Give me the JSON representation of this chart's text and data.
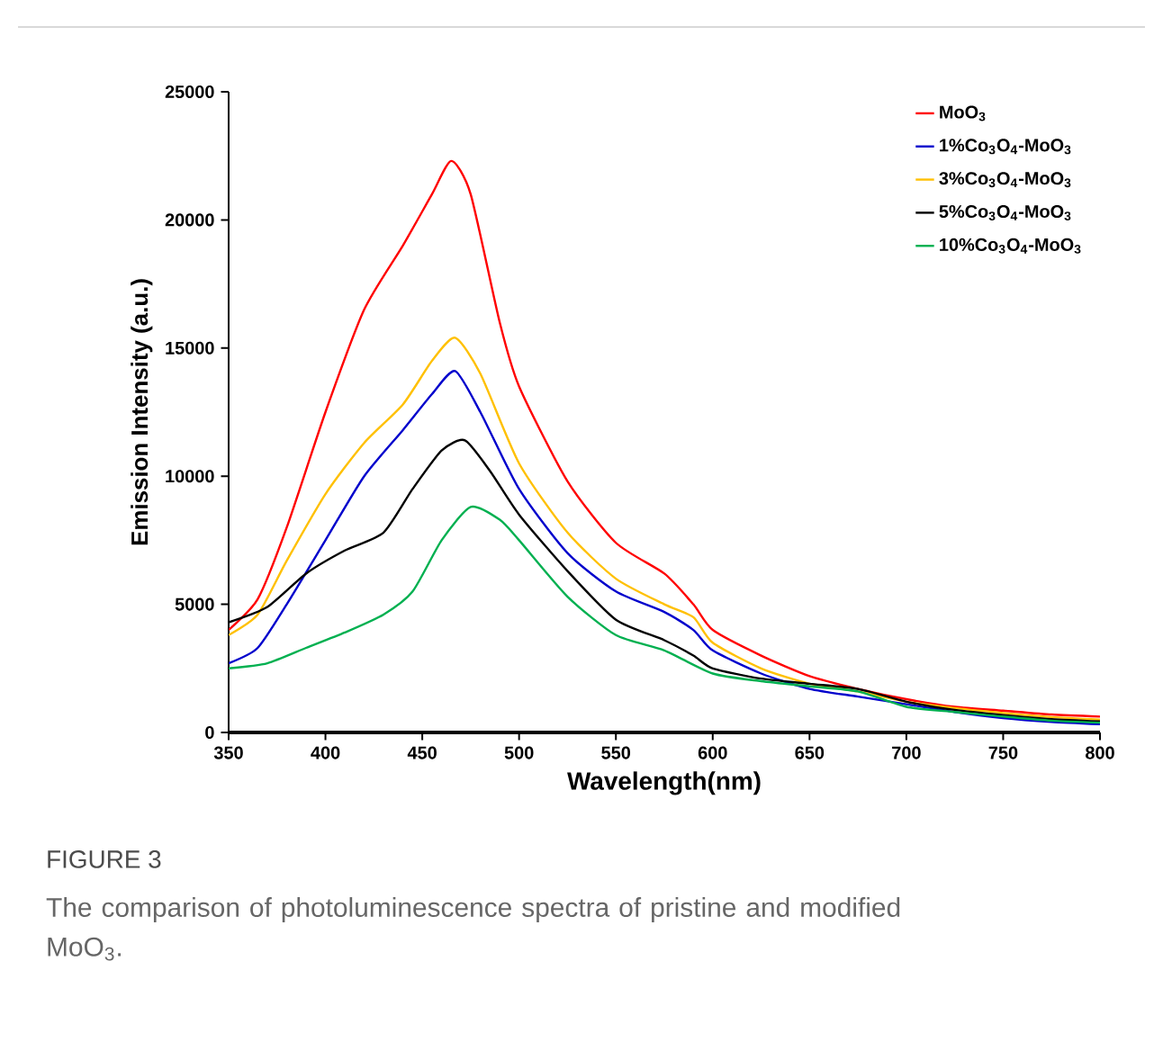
{
  "chart_data": {
    "type": "line",
    "xlabel": "Wavelength(nm)",
    "ylabel": "Emission Intensity (a.u.)",
    "xlim": [
      350,
      800
    ],
    "xticks": [
      350,
      400,
      450,
      500,
      550,
      600,
      650,
      700,
      750,
      800
    ],
    "ylim": [
      0,
      25000
    ],
    "yticks": [
      0,
      5000,
      10000,
      15000,
      20000,
      25000
    ],
    "legend": "top right",
    "grid": false,
    "marker": "none",
    "line_style": "solid",
    "annotations": [
      "FIGURE 3",
      "The comparison of photoluminescence spectra of pristine and modified MoO$_{3}$."
    ],
    "series": [
      {
        "name": "MoO$_{3}$",
        "color": "#ff0000",
        "x": [
          350,
          365,
          380,
          400,
          420,
          440,
          455,
          465,
          475,
          490,
          500,
          525,
          550,
          575,
          590,
          600,
          625,
          650,
          675,
          700,
          725,
          750,
          775,
          800
        ],
        "values": [
          4000,
          5200,
          8000,
          12500,
          16500,
          19000,
          21000,
          22300,
          21000,
          16000,
          13500,
          9800,
          7400,
          6200,
          5000,
          4000,
          3000,
          2200,
          1700,
          1300,
          1000,
          850,
          700,
          620
        ]
      },
      {
        "name": "1%Co$_{3}$O$_{4}$-MoO$_{3}$",
        "color": "#0000cc",
        "x": [
          350,
          365,
          380,
          400,
          420,
          440,
          455,
          467,
          480,
          500,
          525,
          550,
          575,
          590,
          600,
          625,
          650,
          675,
          700,
          725,
          750,
          775,
          800
        ],
        "values": [
          2700,
          3300,
          5000,
          7500,
          10000,
          11800,
          13200,
          14100,
          12500,
          9500,
          7000,
          5500,
          4700,
          4000,
          3200,
          2300,
          1700,
          1400,
          1100,
          800,
          560,
          410,
          320
        ]
      },
      {
        "name": "3%Co$_{3}$O$_{4}$-MoO$_{3}$",
        "color": "#ffc000",
        "x": [
          350,
          365,
          380,
          400,
          420,
          440,
          455,
          467,
          480,
          500,
          525,
          550,
          575,
          590,
          600,
          625,
          650,
          675,
          700,
          725,
          750,
          775,
          800
        ],
        "values": [
          3800,
          4600,
          6700,
          9300,
          11300,
          12800,
          14500,
          15400,
          14000,
          10500,
          7800,
          6000,
          5000,
          4500,
          3500,
          2500,
          1900,
          1600,
          1200,
          950,
          760,
          600,
          500
        ]
      },
      {
        "name": "5%Co$_{3}$O$_{4}$-MoO$_{3}$",
        "color": "#000000",
        "x": [
          350,
          370,
          390,
          410,
          430,
          445,
          460,
          472,
          485,
          500,
          525,
          550,
          575,
          590,
          600,
          625,
          650,
          675,
          700,
          725,
          750,
          775,
          800
        ],
        "values": [
          4300,
          4900,
          6200,
          7100,
          7800,
          9500,
          11000,
          11400,
          10200,
          8500,
          6300,
          4400,
          3600,
          3000,
          2500,
          2100,
          1900,
          1700,
          1200,
          880,
          680,
          520,
          430
        ]
      },
      {
        "name": "10%Co$_{3}$O$_{4}$-MoO$_{3}$",
        "color": "#00b050",
        "x": [
          350,
          370,
          390,
          410,
          430,
          445,
          460,
          475,
          490,
          500,
          525,
          550,
          575,
          600,
          625,
          650,
          675,
          700,
          725,
          750,
          775,
          800
        ],
        "values": [
          2500,
          2700,
          3300,
          3900,
          4600,
          5500,
          7500,
          8800,
          8300,
          7500,
          5300,
          3800,
          3200,
          2300,
          2000,
          1800,
          1600,
          1000,
          800,
          620,
          460,
          380
        ]
      }
    ]
  }
}
